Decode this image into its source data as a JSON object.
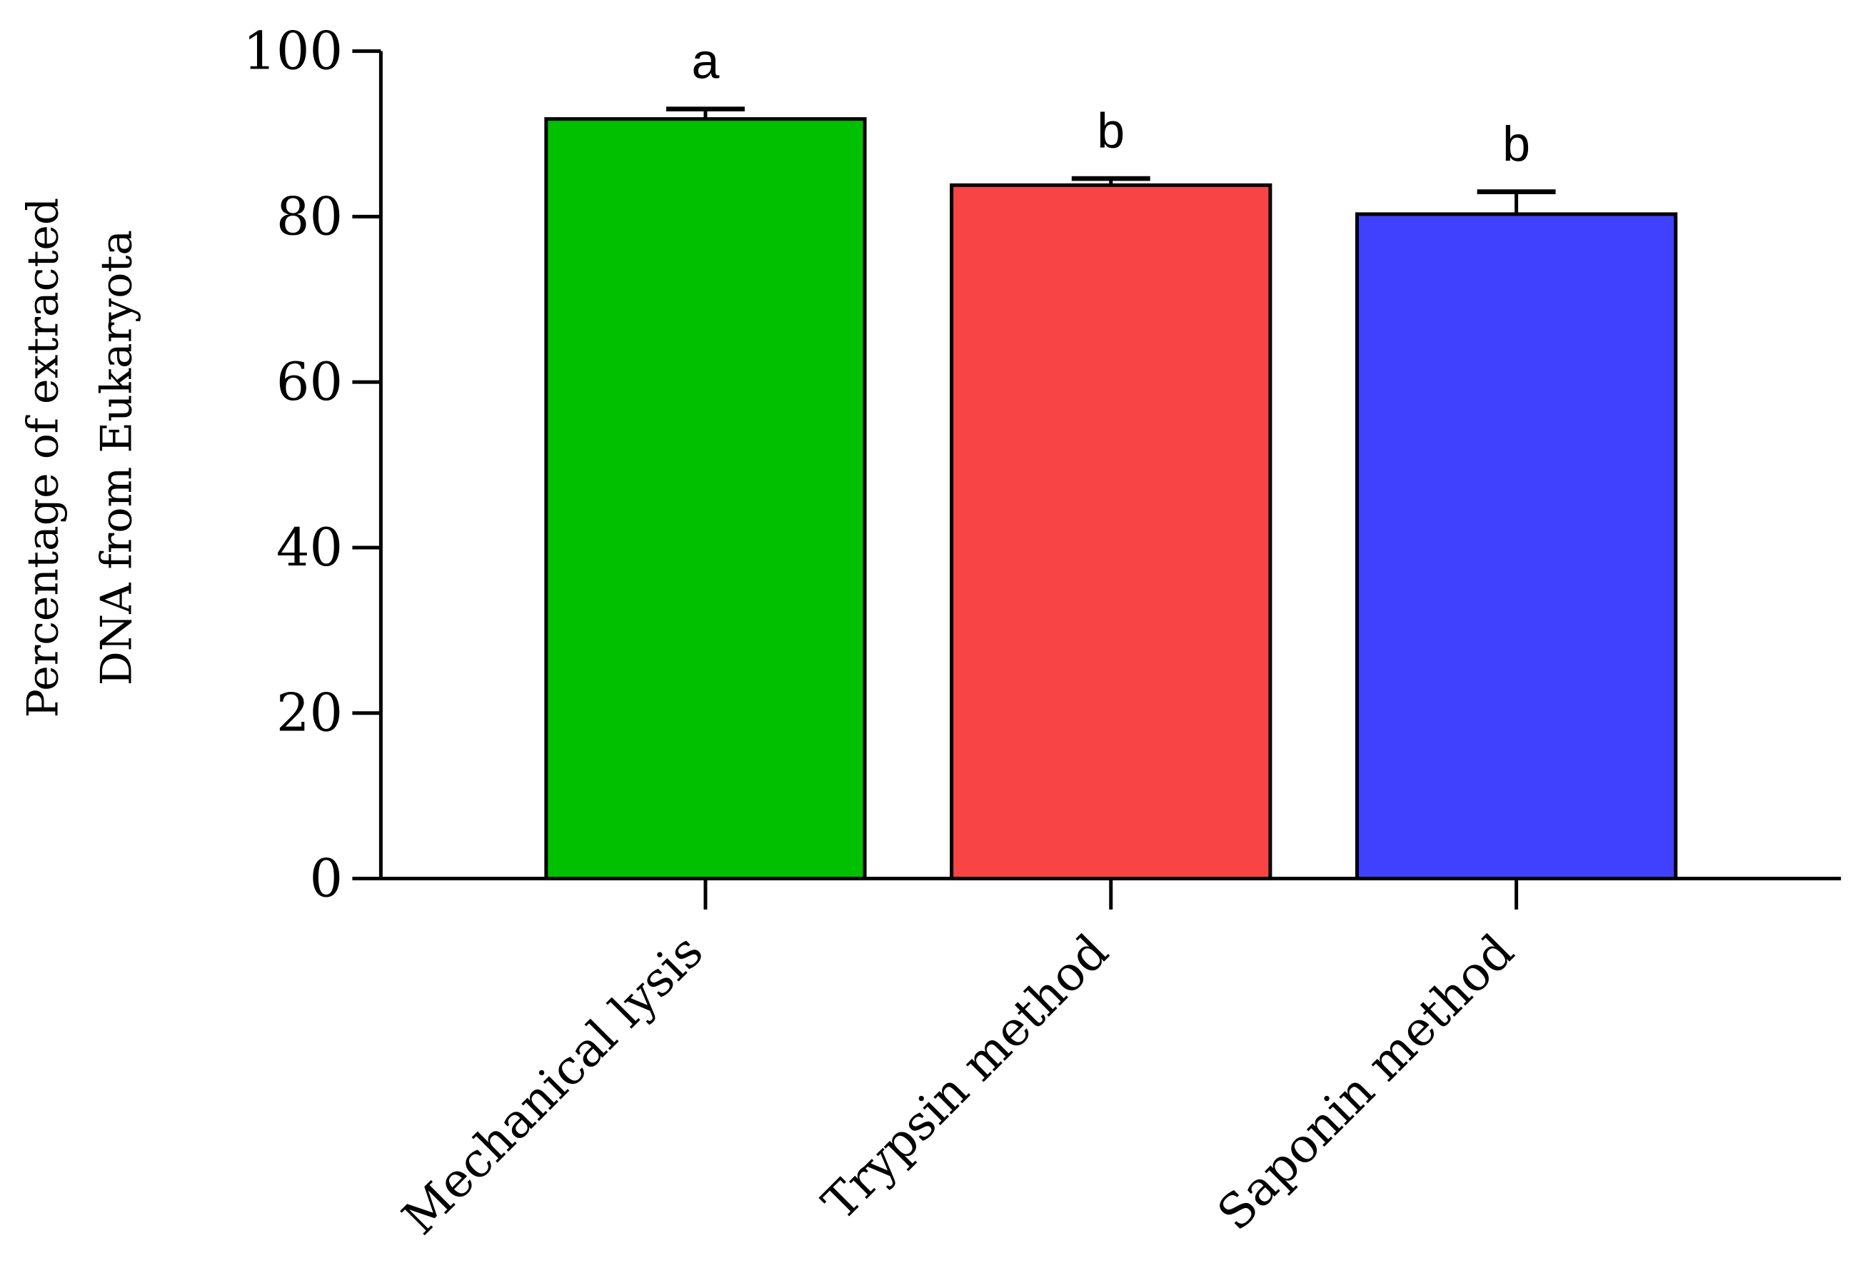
{
  "chart_data": {
    "type": "bar",
    "title": "",
    "xlabel": "",
    "ylabel_lines": [
      "Percentage of extracted",
      "DNA from Eukaryota"
    ],
    "ylim": [
      0,
      100
    ],
    "yticks": [
      0,
      20,
      40,
      60,
      80,
      100
    ],
    "categories": [
      "Mechanical lysis",
      "Trypsin method",
      "Saponin method"
    ],
    "values": [
      91.8,
      83.8,
      80.3
    ],
    "error_upper": [
      1.2,
      0.8,
      2.7
    ],
    "significance_letters": [
      "a",
      "b",
      "b"
    ],
    "colors": [
      "#00c000",
      "#f84444",
      "#4040ff"
    ],
    "grid": false,
    "legend": "none"
  }
}
